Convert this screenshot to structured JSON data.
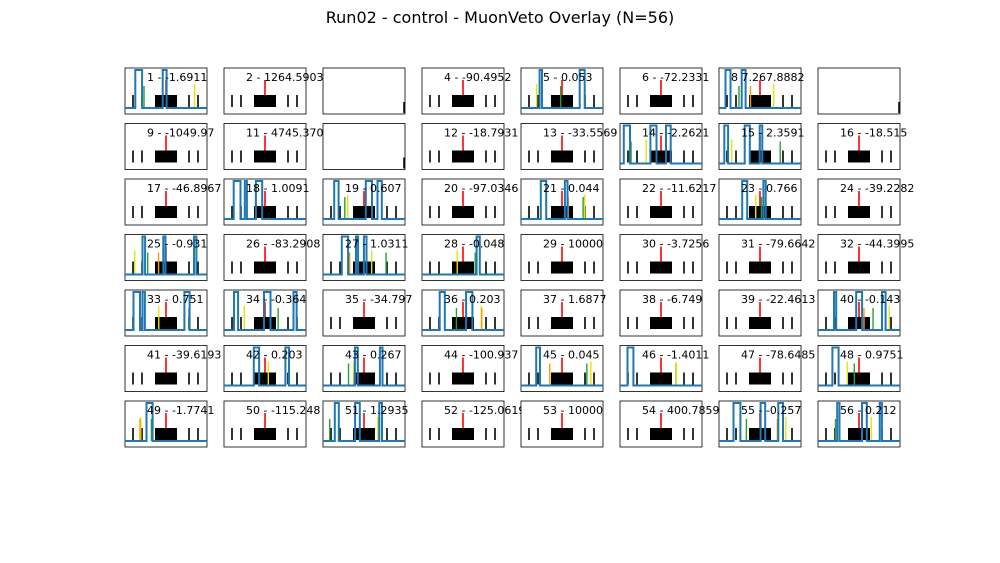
{
  "figure_title": "Run02 - control - MuonVeto Overlay (N=56)",
  "colors": {
    "trace": "#1f77b4",
    "trigger": "#ff0000",
    "green_marker": "#2ca02c",
    "yellow_marker": "#e6e600",
    "orange_marker": "#ff9900",
    "frame": "#000000"
  },
  "chart_data": {
    "type": "line",
    "grid": false,
    "panels": [
      {
        "label": "1 - -1.6911",
        "trace": true
      },
      {
        "label": "2 - 1264.5903",
        "trace": false
      },
      {
        "label": "",
        "trace": false
      },
      {
        "label": "4 - -90.4952",
        "trace": false
      },
      {
        "label": "5 - 0.053",
        "trace": true
      },
      {
        "label": "6 - -72.2331",
        "trace": false
      },
      {
        "label": "8 7.267.8882",
        "trace": true
      },
      {
        "label": "",
        "trace": false
      },
      {
        "label": "9 - -1049.97",
        "trace": false
      },
      {
        "label": "11 - 4745.3705",
        "trace": false
      },
      {
        "label": "",
        "trace": false
      },
      {
        "label": "12 - -18.7931",
        "trace": false
      },
      {
        "label": "13 - -33.5569",
        "trace": false
      },
      {
        "label": "14 - -2.2621",
        "trace": true
      },
      {
        "label": "15 - 2.3591",
        "trace": true
      },
      {
        "label": "16 - -18.515",
        "trace": false
      },
      {
        "label": "17 - -46.8967",
        "trace": false
      },
      {
        "label": "18 - 1.0091",
        "trace": true
      },
      {
        "label": "19 - 0.607",
        "trace": true
      },
      {
        "label": "20 - -97.0346",
        "trace": false
      },
      {
        "label": "21 - 0.044",
        "trace": true
      },
      {
        "label": "22 - -11.6217",
        "trace": false
      },
      {
        "label": "23 - 0.766",
        "trace": true
      },
      {
        "label": "24 - -39.2282",
        "trace": false
      },
      {
        "label": "25 - -0.931",
        "trace": true
      },
      {
        "label": "26 - -83.2908",
        "trace": false
      },
      {
        "label": "27 - 1.0311",
        "trace": true
      },
      {
        "label": "28 - -0.048",
        "trace": true
      },
      {
        "label": "29 - 10000",
        "trace": false
      },
      {
        "label": "30 - -3.7256",
        "trace": false
      },
      {
        "label": "31 - -79.6642",
        "trace": false
      },
      {
        "label": "32 - -44.3995",
        "trace": false
      },
      {
        "label": "33 - 0.751",
        "trace": true
      },
      {
        "label": "34 - -0.364",
        "trace": true
      },
      {
        "label": "35 - -34.797",
        "trace": false
      },
      {
        "label": "36 - 0.203",
        "trace": true
      },
      {
        "label": "37 - 1.6877",
        "trace": false
      },
      {
        "label": "38 - -6.749",
        "trace": false
      },
      {
        "label": "39 - -22.4613",
        "trace": false
      },
      {
        "label": "40 - -0.143",
        "trace": true
      },
      {
        "label": "41 - -39.6193",
        "trace": false
      },
      {
        "label": "42 - 0.203",
        "trace": true
      },
      {
        "label": "43 - 0.267",
        "trace": true
      },
      {
        "label": "44 - -100.937",
        "trace": false
      },
      {
        "label": "45 - 0.045",
        "trace": true
      },
      {
        "label": "46 - -1.4011",
        "trace": true
      },
      {
        "label": "47 - -78.6485",
        "trace": false
      },
      {
        "label": "48 - 0.9751",
        "trace": true
      },
      {
        "label": "49 - -1.7741",
        "trace": true
      },
      {
        "label": "50 - -115.248",
        "trace": false
      },
      {
        "label": "51 - 1.2935",
        "trace": true
      },
      {
        "label": "52 - -125.0619",
        "trace": false
      },
      {
        "label": "53 - 10000",
        "trace": false
      },
      {
        "label": "54 - 400.7859",
        "trace": false
      },
      {
        "label": "55 - -0.257",
        "trace": true
      },
      {
        "label": "56 - 0.212",
        "trace": true
      }
    ]
  }
}
